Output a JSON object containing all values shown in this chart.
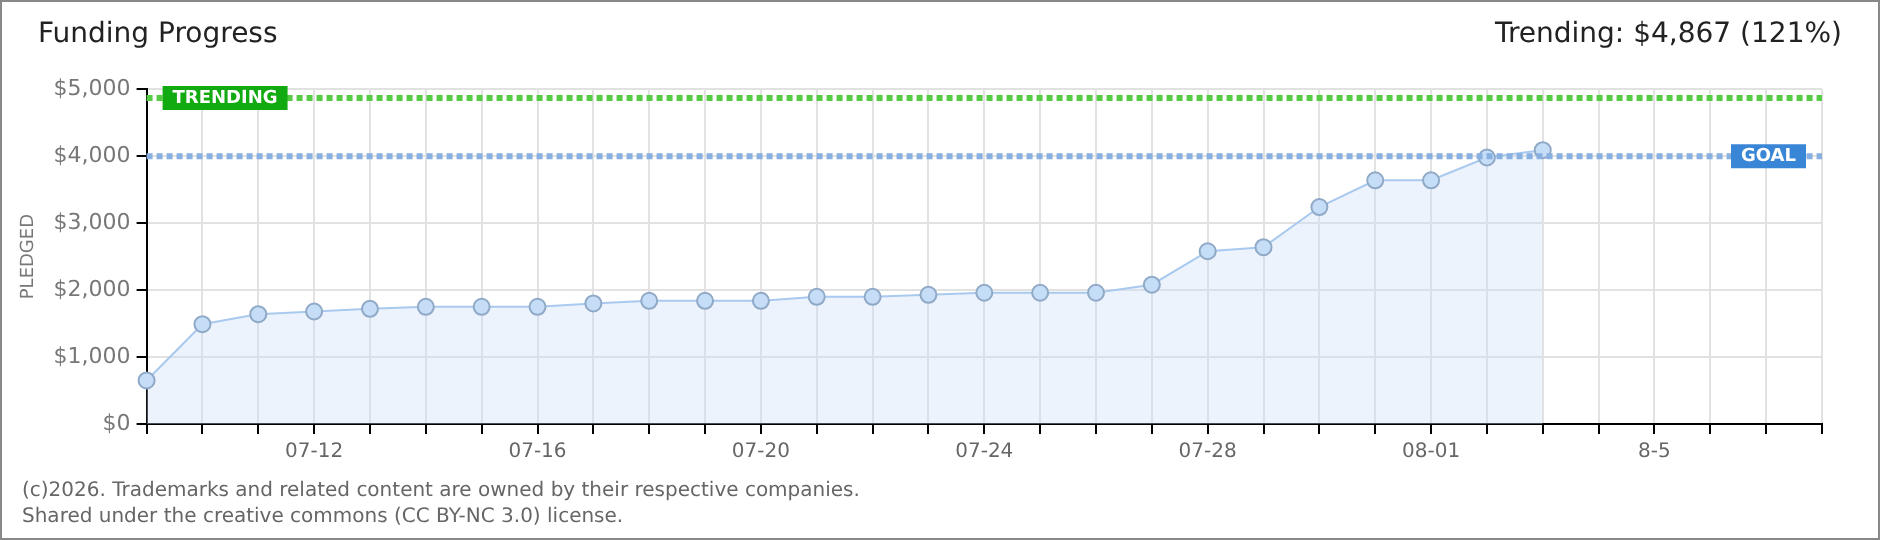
{
  "chart_data": {
    "type": "area",
    "title": "Funding Progress",
    "ylabel": "PLEDGED",
    "annotations": [
      "Trending: $4,867 (121%)",
      "(c)2026. Trademarks and related content are owned by their respective companies.",
      "Shared under the creative commons (CC BY-NC 3.0) license."
    ],
    "categories": [
      null,
      null,
      null,
      "07-12",
      null,
      null,
      null,
      "07-16",
      null,
      null,
      null,
      "07-20",
      null,
      null,
      null,
      "07-24",
      null,
      null,
      null,
      "07-28",
      null,
      null,
      null,
      "08-01",
      null,
      null,
      null,
      "8-5",
      null,
      null,
      null
    ],
    "series": [
      {
        "color": "#a9c9ee",
        "values": [
          650,
          1490,
          1640,
          1680,
          1720,
          1750,
          1750,
          1750,
          1800,
          1840,
          1840,
          1840,
          1900,
          1900,
          1930,
          1960,
          1960,
          1960,
          2080,
          2580,
          2640,
          3240,
          3640,
          3640,
          3980,
          4090,
          null,
          null,
          null,
          null,
          null
        ]
      }
    ],
    "ylim": [
      0,
      5000
    ],
    "yticks": [
      {
        "value": 0,
        "label": "$0"
      },
      {
        "value": 1000,
        "label": "$1,000"
      },
      {
        "value": 2000,
        "label": "$2,000"
      },
      {
        "value": 3000,
        "label": "$3,000"
      },
      {
        "value": 4000,
        "label": "$4,000"
      },
      {
        "value": 5000,
        "label": "$5,000"
      }
    ],
    "ref_lines": [
      {
        "axis": "y",
        "value": 4867,
        "label": "TRENDING",
        "color": "#55cc44",
        "line_style": "dotted"
      },
      {
        "axis": "y",
        "value": 4000,
        "label": "GOAL",
        "color": "#88b0e0",
        "line_style": "dotted"
      }
    ],
    "grid": true,
    "legend": false,
    "marker": "circle"
  }
}
